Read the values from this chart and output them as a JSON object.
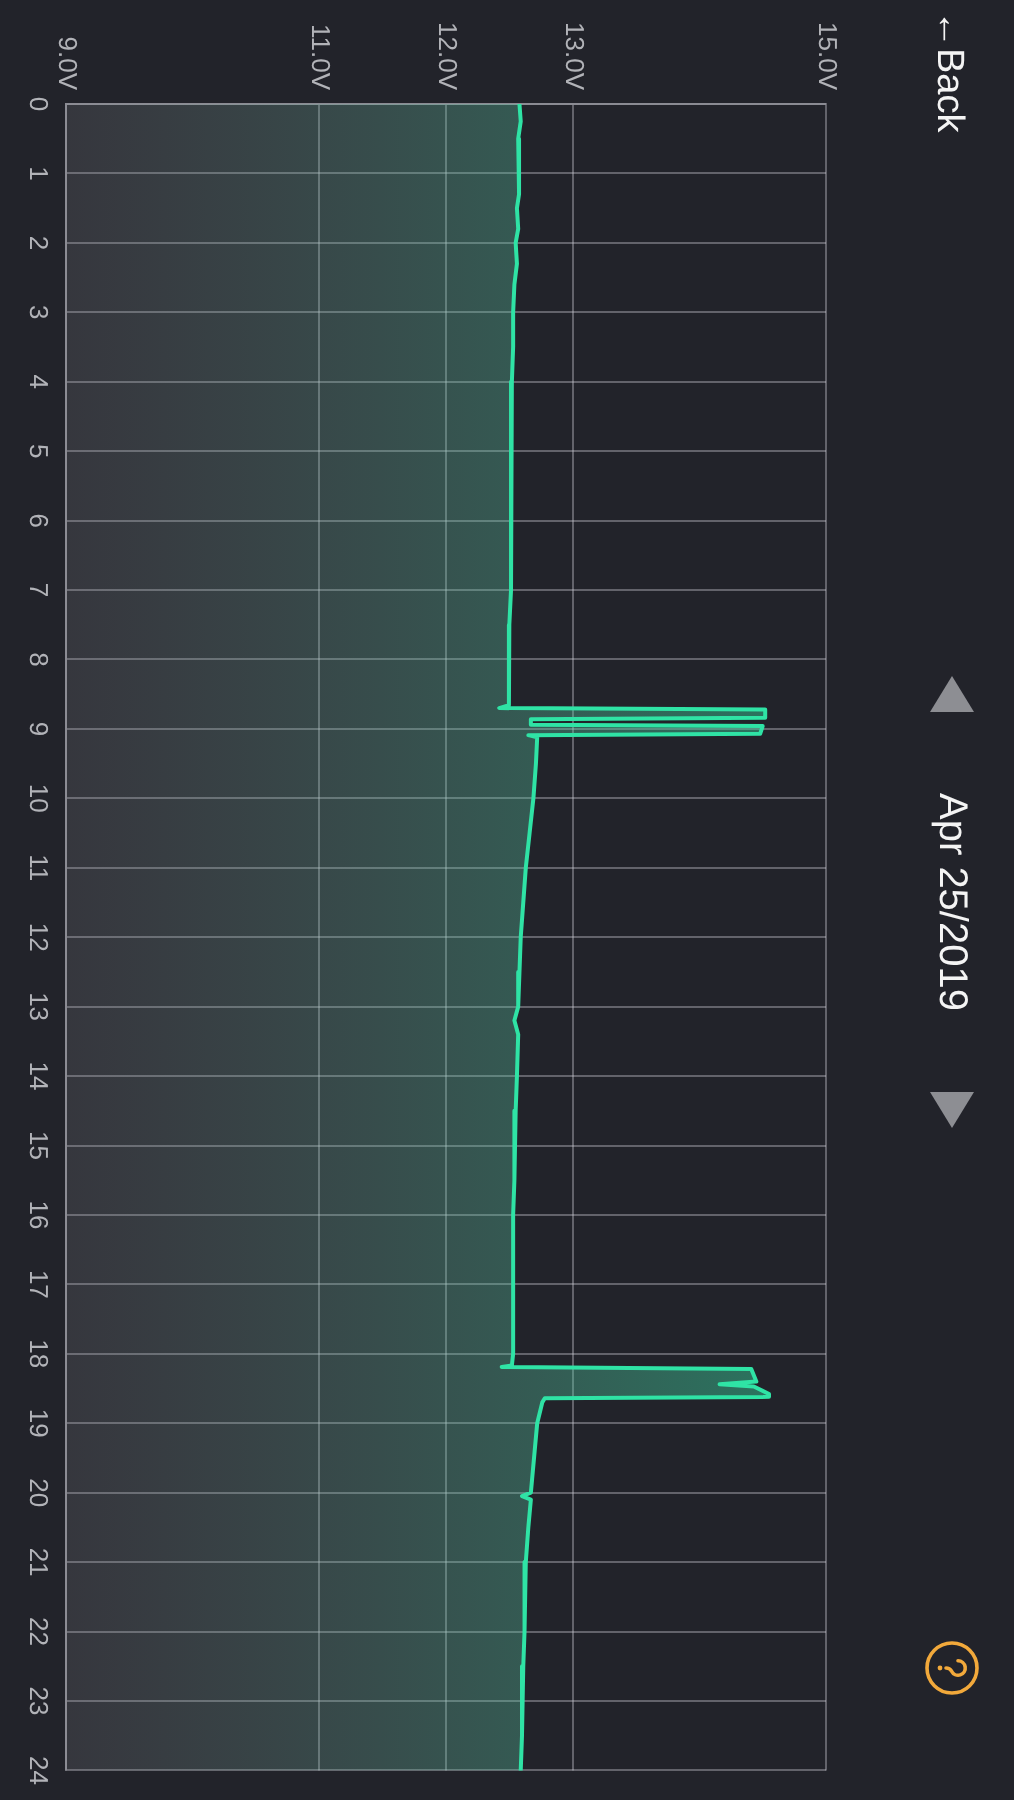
{
  "chart_data": {
    "type": "area",
    "orientation": "horizontal",
    "title": "Apr 25/2019",
    "annotations": [
      "←Back"
    ],
    "x": [
      0,
      0.25,
      0.5,
      0.75,
      1,
      1.3,
      1.5,
      1.8,
      2,
      2.3,
      2.6,
      3,
      3.5,
      4,
      4.5,
      5,
      5.5,
      6,
      6.5,
      7,
      7.5,
      8,
      8.4,
      8.66,
      8.7,
      8.72,
      8.84,
      8.86,
      8.94,
      8.96,
      9.07,
      9.09,
      9.12,
      9.5,
      10,
      10.5,
      11,
      11.5,
      12,
      12.5,
      13,
      13.2,
      13.4,
      14,
      14.5,
      15,
      15.5,
      16,
      16.5,
      17,
      17.5,
      18,
      18.17,
      18.19,
      18.22,
      18.4,
      18.44,
      18.47,
      18.58,
      18.62,
      18.64,
      18.7,
      19,
      19.4,
      19.8,
      20,
      20.05,
      20.1,
      20.5,
      21,
      21.5,
      22,
      22.5,
      23,
      23.5,
      24
    ],
    "values": [
      12.58,
      12.59,
      12.57,
      12.58,
      12.57,
      12.58,
      12.56,
      12.57,
      12.55,
      12.56,
      12.54,
      12.53,
      12.53,
      12.52,
      12.52,
      12.51,
      12.52,
      12.51,
      12.51,
      12.51,
      12.5,
      12.5,
      12.49,
      12.5,
      12.42,
      14.52,
      14.52,
      12.67,
      12.67,
      14.5,
      14.48,
      12.65,
      12.72,
      12.71,
      12.69,
      12.66,
      12.63,
      12.61,
      12.59,
      12.58,
      12.57,
      12.54,
      12.57,
      12.56,
      12.55,
      12.54,
      12.54,
      12.53,
      12.53,
      12.53,
      12.53,
      12.53,
      12.52,
      12.44,
      14.41,
      14.45,
      14.16,
      14.43,
      14.55,
      14.55,
      12.78,
      12.76,
      12.72,
      12.7,
      12.68,
      12.67,
      12.6,
      12.67,
      12.65,
      12.63,
      12.62,
      12.62,
      12.61,
      12.6,
      12.6,
      12.59
    ],
    "color": "#2fe3a5",
    "marker": "none",
    "line_style": "solid",
    "xlim": [
      9,
      15
    ],
    "xticks": [
      {
        "value": 9,
        "label": "9.0V"
      },
      {
        "value": 11,
        "label": "11.0V"
      },
      {
        "value": 12,
        "label": "12.0V"
      },
      {
        "value": 13,
        "label": "13.0V"
      },
      {
        "value": 15,
        "label": "15.0V"
      }
    ],
    "ylim": [
      24,
      0
    ],
    "yticks": [
      0,
      1,
      2,
      3,
      4,
      5,
      6,
      7,
      8,
      9,
      10,
      11,
      12,
      13,
      14,
      15,
      16,
      17,
      18,
      19,
      20,
      21,
      22,
      23,
      24
    ],
    "grid": true
  }
}
